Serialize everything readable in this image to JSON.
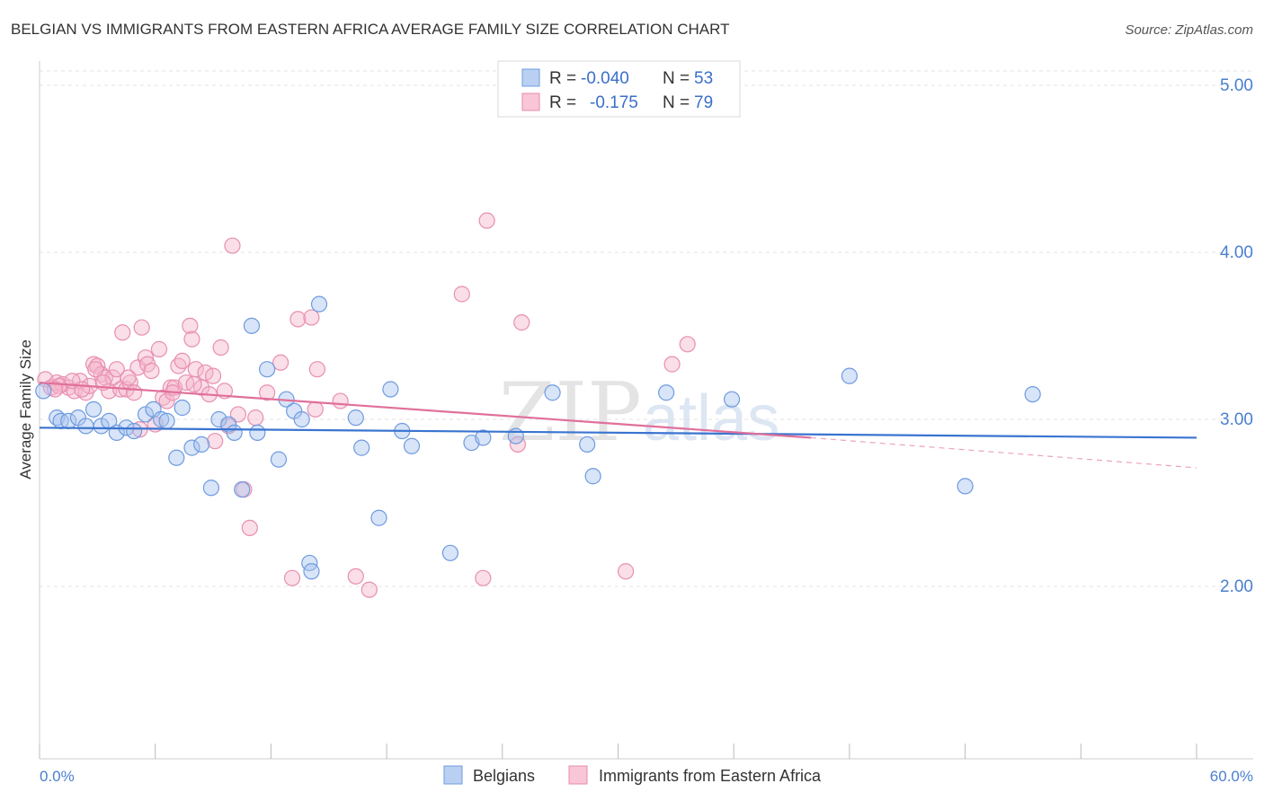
{
  "title": "BELGIAN VS IMMIGRANTS FROM EASTERN AFRICA AVERAGE FAMILY SIZE CORRELATION CHART",
  "source": "Source: ZipAtlas.com",
  "watermark": {
    "zip": "ZIP",
    "atlas": "atlas"
  },
  "legend": {
    "row1": {
      "r_label": "R = ",
      "r_value": "-0.040",
      "n_label": "N = ",
      "n_value": "53"
    },
    "row2": {
      "r_label": "R = ",
      "r_value": "-0.175",
      "n_label": "N = ",
      "n_value": "79"
    }
  },
  "colors": {
    "blue": "#5b8fd6",
    "blue_fill": "#a9c4ee",
    "pink": "#e8739e",
    "pink_fill": "#f4b5cb",
    "axis_text": "#4a7fd0"
  },
  "chart_data": {
    "type": "scatter",
    "title": "BELGIAN VS IMMIGRANTS FROM EASTERN AFRICA AVERAGE FAMILY SIZE CORRELATION CHART",
    "xlabel": "",
    "ylabel": "Average Family Size",
    "xlim": [
      0,
      60
    ],
    "ylim": [
      1.0,
      5.1
    ],
    "x_tick_labels": [
      "0.0%",
      "60.0%"
    ],
    "y_ticks": [
      2.0,
      3.0,
      4.0,
      5.0
    ],
    "y_tick_labels": [
      "2.00",
      "3.00",
      "4.00",
      "5.00"
    ],
    "grid": true,
    "legend_position": "bottom",
    "series": [
      {
        "name": "Belgians",
        "color": "#5b8fd6",
        "points": [
          [
            0.2,
            3.17
          ],
          [
            0.9,
            3.01
          ],
          [
            1.1,
            2.99
          ],
          [
            1.5,
            2.99
          ],
          [
            2.0,
            3.01
          ],
          [
            2.4,
            2.96
          ],
          [
            2.8,
            3.06
          ],
          [
            3.2,
            2.96
          ],
          [
            3.6,
            2.99
          ],
          [
            4.0,
            2.92
          ],
          [
            4.5,
            2.95
          ],
          [
            4.9,
            2.93
          ],
          [
            5.5,
            3.03
          ],
          [
            5.9,
            3.06
          ],
          [
            6.3,
            3.0
          ],
          [
            6.6,
            2.99
          ],
          [
            7.1,
            2.77
          ],
          [
            7.4,
            3.07
          ],
          [
            7.9,
            2.83
          ],
          [
            8.4,
            2.85
          ],
          [
            8.9,
            2.59
          ],
          [
            9.3,
            3.0
          ],
          [
            9.8,
            2.97
          ],
          [
            10.1,
            2.92
          ],
          [
            10.5,
            2.58
          ],
          [
            11.0,
            3.56
          ],
          [
            11.3,
            2.92
          ],
          [
            11.8,
            3.3
          ],
          [
            12.4,
            2.76
          ],
          [
            12.8,
            3.12
          ],
          [
            13.2,
            3.05
          ],
          [
            13.6,
            3.0
          ],
          [
            14.0,
            2.14
          ],
          [
            14.1,
            2.09
          ],
          [
            14.5,
            3.69
          ],
          [
            16.4,
            3.01
          ],
          [
            16.7,
            2.83
          ],
          [
            17.6,
            2.41
          ],
          [
            18.2,
            3.18
          ],
          [
            18.8,
            2.93
          ],
          [
            19.3,
            2.84
          ],
          [
            21.3,
            2.2
          ],
          [
            22.4,
            2.86
          ],
          [
            23.0,
            2.89
          ],
          [
            24.7,
            2.9
          ],
          [
            26.6,
            3.16
          ],
          [
            28.4,
            2.85
          ],
          [
            28.7,
            2.66
          ],
          [
            32.5,
            3.16
          ],
          [
            35.9,
            3.12
          ],
          [
            42.0,
            3.26
          ],
          [
            48.0,
            2.6
          ],
          [
            51.5,
            3.15
          ]
        ],
        "trend": {
          "x": [
            0,
            60
          ],
          "y": [
            2.95,
            2.89
          ]
        }
      },
      {
        "name": "Immigrants from Eastern Africa",
        "color": "#e8739e",
        "points": [
          [
            0.3,
            3.24
          ],
          [
            0.6,
            3.19
          ],
          [
            0.9,
            3.22
          ],
          [
            1.2,
            3.21
          ],
          [
            1.5,
            3.19
          ],
          [
            1.8,
            3.17
          ],
          [
            2.1,
            3.23
          ],
          [
            2.4,
            3.16
          ],
          [
            2.6,
            3.2
          ],
          [
            2.8,
            3.33
          ],
          [
            3.0,
            3.32
          ],
          [
            3.2,
            3.27
          ],
          [
            3.4,
            3.25
          ],
          [
            3.6,
            3.17
          ],
          [
            3.8,
            3.25
          ],
          [
            4.0,
            3.3
          ],
          [
            4.2,
            3.18
          ],
          [
            4.3,
            3.52
          ],
          [
            4.5,
            3.18
          ],
          [
            4.7,
            3.22
          ],
          [
            4.9,
            3.16
          ],
          [
            5.1,
            3.31
          ],
          [
            5.3,
            3.55
          ],
          [
            5.5,
            3.37
          ],
          [
            5.6,
            3.33
          ],
          [
            5.8,
            3.29
          ],
          [
            6.0,
            2.97
          ],
          [
            6.2,
            3.42
          ],
          [
            6.4,
            3.13
          ],
          [
            6.6,
            3.11
          ],
          [
            6.8,
            3.19
          ],
          [
            7.0,
            3.19
          ],
          [
            7.2,
            3.32
          ],
          [
            7.4,
            3.35
          ],
          [
            7.6,
            3.22
          ],
          [
            7.8,
            3.56
          ],
          [
            7.9,
            3.48
          ],
          [
            8.1,
            3.3
          ],
          [
            8.4,
            3.19
          ],
          [
            8.6,
            3.28
          ],
          [
            8.8,
            3.15
          ],
          [
            9.1,
            2.87
          ],
          [
            9.4,
            3.43
          ],
          [
            9.6,
            3.17
          ],
          [
            9.8,
            2.96
          ],
          [
            10.0,
            4.04
          ],
          [
            10.3,
            3.03
          ],
          [
            10.6,
            2.58
          ],
          [
            10.9,
            2.35
          ],
          [
            11.2,
            3.01
          ],
          [
            12.5,
            3.34
          ],
          [
            13.1,
            2.05
          ],
          [
            13.4,
            3.6
          ],
          [
            14.1,
            3.61
          ],
          [
            14.3,
            3.06
          ],
          [
            14.4,
            3.3
          ],
          [
            15.6,
            3.11
          ],
          [
            16.4,
            2.06
          ],
          [
            17.1,
            1.98
          ],
          [
            21.9,
            3.75
          ],
          [
            23.0,
            2.05
          ],
          [
            23.2,
            4.19
          ],
          [
            24.8,
            2.85
          ],
          [
            25.0,
            3.58
          ],
          [
            30.4,
            2.09
          ],
          [
            32.8,
            3.33
          ],
          [
            33.6,
            3.45
          ],
          [
            1.0,
            3.2
          ],
          [
            1.7,
            3.23
          ],
          [
            2.2,
            3.18
          ],
          [
            3.3,
            3.22
          ],
          [
            4.6,
            3.25
          ],
          [
            5.2,
            2.94
          ],
          [
            6.9,
            3.16
          ],
          [
            8.0,
            3.21
          ],
          [
            9.0,
            3.26
          ],
          [
            11.8,
            3.16
          ],
          [
            2.9,
            3.3
          ],
          [
            0.8,
            3.18
          ]
        ],
        "trend": {
          "x": [
            0,
            40
          ],
          "y": [
            3.22,
            2.89
          ],
          "dashed_to": {
            "x": 60,
            "y": 2.71
          }
        }
      }
    ]
  }
}
